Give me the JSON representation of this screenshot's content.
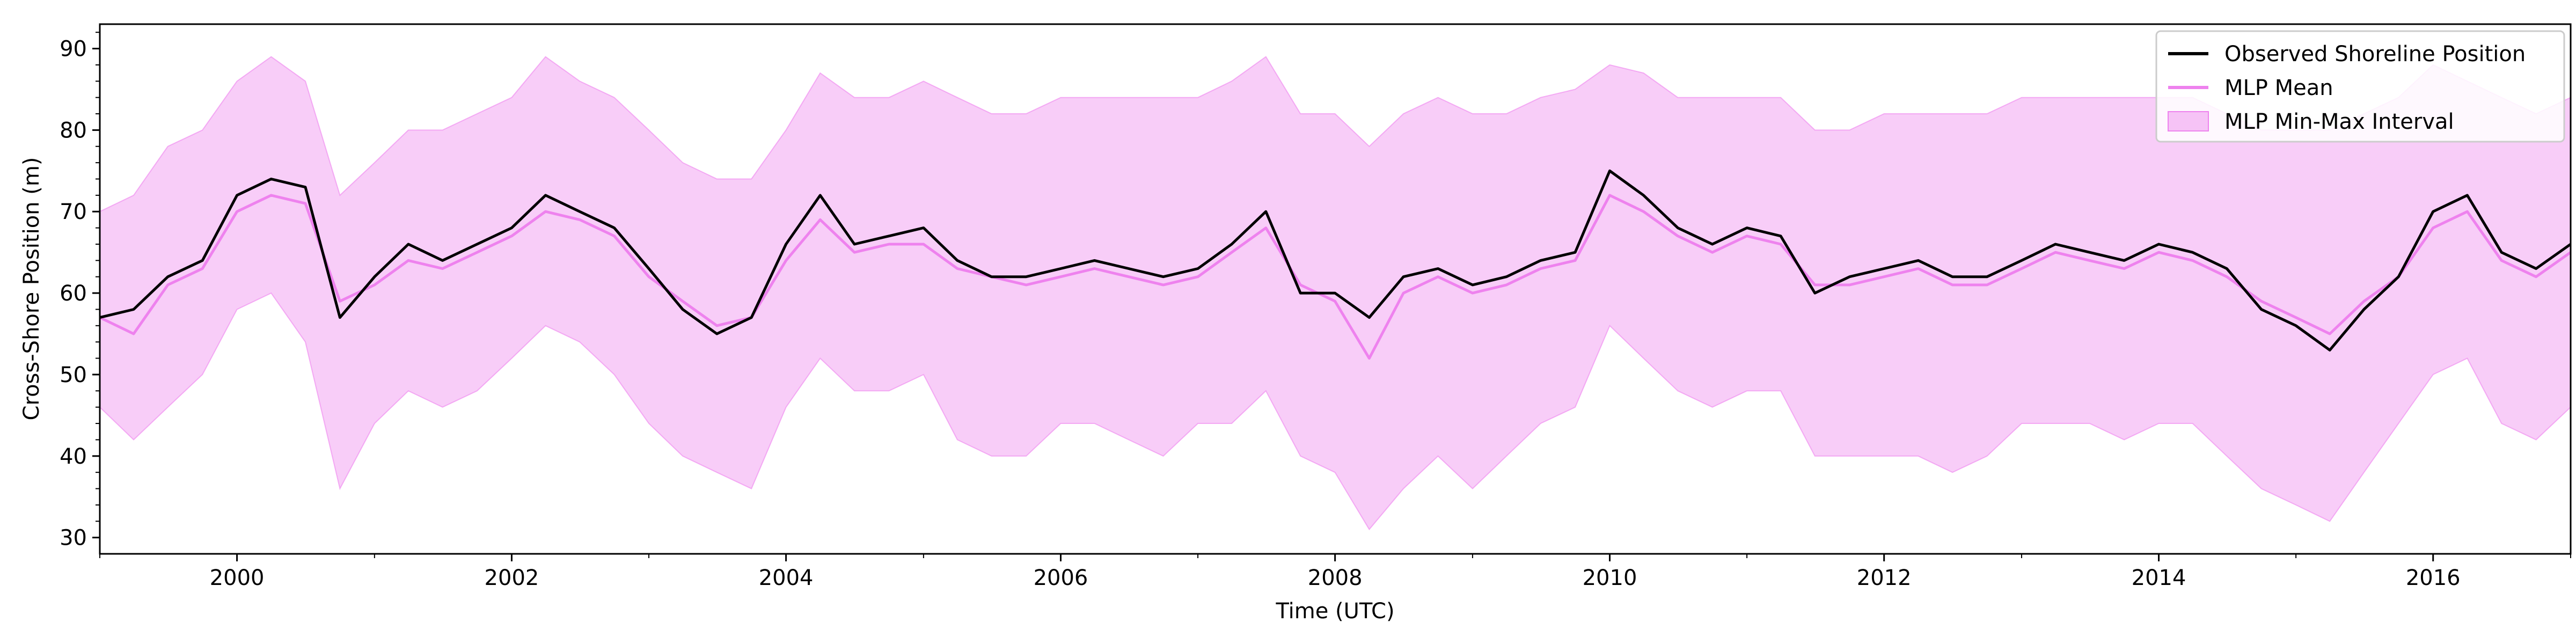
{
  "chart_data": {
    "type": "line",
    "title": "",
    "xlabel": "Time (UTC)",
    "ylabel": "Cross-Shore Position (m)",
    "xlim": [
      "1999-01-01",
      "2017-01-01"
    ],
    "ylim": [
      28,
      93
    ],
    "x_ticks": [
      "2000",
      "2002",
      "2004",
      "2006",
      "2008",
      "2010",
      "2012",
      "2014",
      "2016"
    ],
    "y_ticks": [
      "30",
      "40",
      "50",
      "60",
      "70",
      "80",
      "90"
    ],
    "grid": false,
    "legend_position": "top-right",
    "series": [
      {
        "name": "Observed Shoreline Position",
        "kind": "line",
        "color": "#000000",
        "x": [
          "1999-01-01",
          "1999-04-01",
          "1999-07-01",
          "1999-10-01",
          "2000-01-01",
          "2000-04-01",
          "2000-07-01",
          "2000-10-01",
          "2001-01-01",
          "2001-04-01",
          "2001-07-01",
          "2001-10-01",
          "2002-01-01",
          "2002-04-01",
          "2002-07-01",
          "2002-10-01",
          "2003-01-01",
          "2003-04-01",
          "2003-07-01",
          "2003-10-01",
          "2004-01-01",
          "2004-04-01",
          "2004-07-01",
          "2004-10-01",
          "2005-01-01",
          "2005-04-01",
          "2005-07-01",
          "2005-10-01",
          "2006-01-01",
          "2006-04-01",
          "2006-07-01",
          "2006-10-01",
          "2007-01-01",
          "2007-04-01",
          "2007-07-01",
          "2007-10-01",
          "2008-01-01",
          "2008-04-01",
          "2008-07-01",
          "2008-10-01",
          "2009-01-01",
          "2009-04-01",
          "2009-07-01",
          "2009-10-01",
          "2010-01-01",
          "2010-04-01",
          "2010-07-01",
          "2010-10-01",
          "2011-01-01",
          "2011-04-01",
          "2011-07-01",
          "2011-10-01",
          "2012-01-01",
          "2012-04-01",
          "2012-07-01",
          "2012-10-01",
          "2013-01-01",
          "2013-04-01",
          "2013-07-01",
          "2013-10-01",
          "2014-01-01",
          "2014-04-01",
          "2014-07-01",
          "2014-10-01",
          "2015-01-01",
          "2015-04-01",
          "2015-07-01",
          "2015-10-01",
          "2016-01-01",
          "2016-04-01",
          "2016-07-01",
          "2016-10-01",
          "2017-01-01"
        ],
        "y": [
          57,
          58,
          62,
          64,
          72,
          74,
          73,
          57,
          62,
          66,
          64,
          66,
          68,
          72,
          70,
          68,
          63,
          58,
          55,
          57,
          66,
          72,
          66,
          67,
          68,
          64,
          62,
          62,
          63,
          64,
          63,
          62,
          63,
          66,
          70,
          60,
          60,
          57,
          62,
          63,
          61,
          62,
          64,
          65,
          75,
          72,
          68,
          66,
          68,
          67,
          60,
          62,
          63,
          64,
          62,
          62,
          64,
          66,
          65,
          64,
          66,
          65,
          63,
          58,
          56,
          53,
          58,
          62,
          70,
          72,
          65,
          63,
          66
        ]
      },
      {
        "name": "MLP Mean",
        "kind": "line",
        "color": "#ee82ee",
        "x": [
          "1999-01-01",
          "1999-04-01",
          "1999-07-01",
          "1999-10-01",
          "2000-01-01",
          "2000-04-01",
          "2000-07-01",
          "2000-10-01",
          "2001-01-01",
          "2001-04-01",
          "2001-07-01",
          "2001-10-01",
          "2002-01-01",
          "2002-04-01",
          "2002-07-01",
          "2002-10-01",
          "2003-01-01",
          "2003-04-01",
          "2003-07-01",
          "2003-10-01",
          "2004-01-01",
          "2004-04-01",
          "2004-07-01",
          "2004-10-01",
          "2005-01-01",
          "2005-04-01",
          "2005-07-01",
          "2005-10-01",
          "2006-01-01",
          "2006-04-01",
          "2006-07-01",
          "2006-10-01",
          "2007-01-01",
          "2007-04-01",
          "2007-07-01",
          "2007-10-01",
          "2008-01-01",
          "2008-04-01",
          "2008-07-01",
          "2008-10-01",
          "2009-01-01",
          "2009-04-01",
          "2009-07-01",
          "2009-10-01",
          "2010-01-01",
          "2010-04-01",
          "2010-07-01",
          "2010-10-01",
          "2011-01-01",
          "2011-04-01",
          "2011-07-01",
          "2011-10-01",
          "2012-01-01",
          "2012-04-01",
          "2012-07-01",
          "2012-10-01",
          "2013-01-01",
          "2013-04-01",
          "2013-07-01",
          "2013-10-01",
          "2014-01-01",
          "2014-04-01",
          "2014-07-01",
          "2014-10-01",
          "2015-01-01",
          "2015-04-01",
          "2015-07-01",
          "2015-10-01",
          "2016-01-01",
          "2016-04-01",
          "2016-07-01",
          "2016-10-01",
          "2017-01-01"
        ],
        "y": [
          57,
          55,
          61,
          63,
          70,
          72,
          71,
          59,
          61,
          64,
          63,
          65,
          67,
          70,
          69,
          67,
          62,
          59,
          56,
          57,
          64,
          69,
          65,
          66,
          66,
          63,
          62,
          61,
          62,
          63,
          62,
          61,
          62,
          65,
          68,
          61,
          59,
          52,
          60,
          62,
          60,
          61,
          63,
          64,
          72,
          70,
          67,
          65,
          67,
          66,
          61,
          61,
          62,
          63,
          61,
          61,
          63,
          65,
          64,
          63,
          65,
          64,
          62,
          59,
          57,
          55,
          59,
          62,
          68,
          70,
          64,
          62,
          65
        ]
      },
      {
        "name": "MLP Min-Max Interval",
        "kind": "band",
        "color": "#ee82ee",
        "x": [
          "1999-01-01",
          "1999-04-01",
          "1999-07-01",
          "1999-10-01",
          "2000-01-01",
          "2000-04-01",
          "2000-07-01",
          "2000-10-01",
          "2001-01-01",
          "2001-04-01",
          "2001-07-01",
          "2001-10-01",
          "2002-01-01",
          "2002-04-01",
          "2002-07-01",
          "2002-10-01",
          "2003-01-01",
          "2003-04-01",
          "2003-07-01",
          "2003-10-01",
          "2004-01-01",
          "2004-04-01",
          "2004-07-01",
          "2004-10-01",
          "2005-01-01",
          "2005-04-01",
          "2005-07-01",
          "2005-10-01",
          "2006-01-01",
          "2006-04-01",
          "2006-07-01",
          "2006-10-01",
          "2007-01-01",
          "2007-04-01",
          "2007-07-01",
          "2007-10-01",
          "2008-01-01",
          "2008-04-01",
          "2008-07-01",
          "2008-10-01",
          "2009-01-01",
          "2009-04-01",
          "2009-07-01",
          "2009-10-01",
          "2010-01-01",
          "2010-04-01",
          "2010-07-01",
          "2010-10-01",
          "2011-01-01",
          "2011-04-01",
          "2011-07-01",
          "2011-10-01",
          "2012-01-01",
          "2012-04-01",
          "2012-07-01",
          "2012-10-01",
          "2013-01-01",
          "2013-04-01",
          "2013-07-01",
          "2013-10-01",
          "2014-01-01",
          "2014-04-01",
          "2014-07-01",
          "2014-10-01",
          "2015-01-01",
          "2015-04-01",
          "2015-07-01",
          "2015-10-01",
          "2016-01-01",
          "2016-04-01",
          "2016-07-01",
          "2016-10-01",
          "2017-01-01"
        ],
        "y_min": [
          46,
          42,
          46,
          50,
          58,
          60,
          54,
          36,
          44,
          48,
          46,
          48,
          52,
          56,
          54,
          50,
          44,
          40,
          38,
          36,
          46,
          52,
          48,
          48,
          50,
          42,
          40,
          40,
          44,
          44,
          42,
          40,
          44,
          44,
          48,
          40,
          38,
          31,
          36,
          40,
          36,
          40,
          44,
          46,
          56,
          52,
          48,
          46,
          48,
          48,
          40,
          40,
          40,
          40,
          38,
          40,
          44,
          44,
          44,
          42,
          44,
          44,
          40,
          36,
          34,
          32,
          38,
          44,
          50,
          52,
          44,
          42,
          46
        ],
        "y_max": [
          70,
          72,
          78,
          80,
          86,
          89,
          86,
          72,
          76,
          80,
          80,
          82,
          84,
          89,
          86,
          84,
          80,
          76,
          74,
          74,
          80,
          87,
          84,
          84,
          86,
          84,
          82,
          82,
          84,
          84,
          84,
          84,
          84,
          86,
          89,
          82,
          82,
          78,
          82,
          84,
          82,
          82,
          84,
          85,
          88,
          87,
          84,
          84,
          84,
          84,
          80,
          80,
          82,
          82,
          82,
          82,
          84,
          84,
          84,
          84,
          84,
          84,
          82,
          80,
          80,
          80,
          82,
          84,
          88,
          86,
          84,
          82,
          84
        ]
      }
    ]
  }
}
